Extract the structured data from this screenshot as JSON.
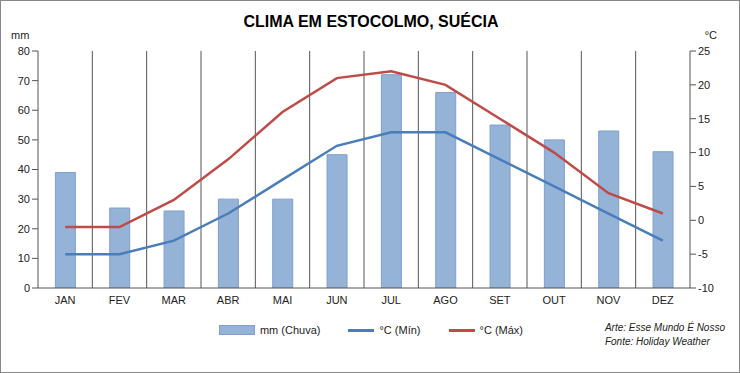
{
  "chart_data": {
    "type": "bar",
    "title": "CLIMA EM ESTOCOLMO, SUÉCIA",
    "categories": [
      "JAN",
      "FEV",
      "MAR",
      "ABR",
      "MAI",
      "JUN",
      "JUL",
      "AGO",
      "SET",
      "OUT",
      "NOV",
      "DEZ"
    ],
    "series": [
      {
        "name": "mm (Chuva)",
        "type": "bar",
        "color": "#95b3d7",
        "values": [
          39,
          27,
          26,
          30,
          30,
          45,
          72,
          66,
          55,
          50,
          53,
          46
        ]
      },
      {
        "name": "°C (Mín)",
        "type": "line",
        "axis": "y2",
        "color": "#4a7ebb",
        "values": [
          -5,
          -5,
          -3,
          1,
          6,
          11,
          13,
          13,
          9,
          5,
          1,
          -3
        ]
      },
      {
        "name": "°C (Máx)",
        "type": "line",
        "axis": "y2",
        "color": "#be4b48",
        "values": [
          -1,
          -1,
          3,
          9,
          16,
          21,
          22,
          20,
          15,
          10,
          4,
          1
        ]
      }
    ],
    "y_label": "mm",
    "y2_label": "°C",
    "ylim": [
      0,
      80
    ],
    "yticks": [
      0,
      10,
      20,
      30,
      40,
      50,
      60,
      70,
      80
    ],
    "y2lim": [
      -10,
      25
    ],
    "y2ticks": [
      -10,
      -5,
      0,
      5,
      10,
      15,
      20,
      25
    ],
    "grid": "x",
    "legend": "bottom",
    "annotations": [
      "Arte: Esse Mundo É Nosso",
      "Fonte: Holiday Weather"
    ]
  }
}
